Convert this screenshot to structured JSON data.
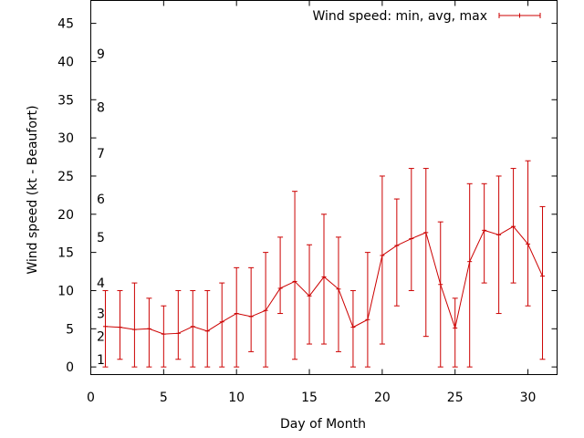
{
  "chart_data": {
    "type": "line",
    "subtype": "error-bars",
    "title": "",
    "xlabel": "Day of Month",
    "ylabel": "Wind speed (kt - Beaufort)",
    "xlim": [
      0,
      32
    ],
    "ylim": [
      -1,
      48
    ],
    "xticks": [
      0,
      5,
      10,
      15,
      20,
      25,
      30
    ],
    "yticks": [
      0,
      5,
      10,
      15,
      20,
      25,
      30,
      35,
      40,
      45
    ],
    "grid": false,
    "legend": {
      "position": "top-right",
      "label": "Wind speed: min, avg, max"
    },
    "series_color": "#cc0000",
    "beaufort_labels": [
      {
        "label": "1",
        "value": 1
      },
      {
        "label": "2",
        "value": 4
      },
      {
        "label": "3",
        "value": 7
      },
      {
        "label": "4",
        "value": 11
      },
      {
        "label": "5",
        "value": 17
      },
      {
        "label": "6",
        "value": 22
      },
      {
        "label": "7",
        "value": 28
      },
      {
        "label": "8",
        "value": 34
      },
      {
        "label": "9",
        "value": 41
      }
    ],
    "series": [
      {
        "name": "Wind speed: min, avg, max",
        "x": [
          1,
          2,
          3,
          4,
          5,
          6,
          7,
          8,
          9,
          10,
          11,
          12,
          13,
          14,
          15,
          16,
          17,
          18,
          19,
          20,
          21,
          22,
          23,
          24,
          25,
          26,
          27,
          28,
          29,
          30,
          31
        ],
        "avg": [
          5.3,
          5.2,
          4.9,
          5.0,
          4.3,
          4.4,
          5.3,
          4.7,
          5.9,
          7.0,
          6.6,
          7.4,
          10.3,
          11.2,
          9.3,
          11.8,
          10.2,
          5.2,
          6.2,
          14.6,
          15.9,
          16.8,
          17.6,
          10.8,
          5.1,
          13.8,
          17.9,
          17.3,
          18.4,
          16.1,
          11.9
        ],
        "min": [
          0,
          1,
          0,
          0,
          0,
          1,
          0,
          0,
          0,
          0,
          2,
          0,
          7,
          1,
          3,
          3,
          2,
          0,
          0,
          3,
          8,
          10,
          4,
          0,
          0,
          0,
          11,
          7,
          11,
          8,
          1
        ],
        "max": [
          10,
          10,
          11,
          9,
          8,
          10,
          10,
          10,
          11,
          13,
          13,
          15,
          17,
          23,
          16,
          20,
          17,
          10,
          15,
          25,
          22,
          26,
          26,
          19,
          9,
          24,
          24,
          25,
          26,
          27,
          21
        ]
      }
    ]
  }
}
